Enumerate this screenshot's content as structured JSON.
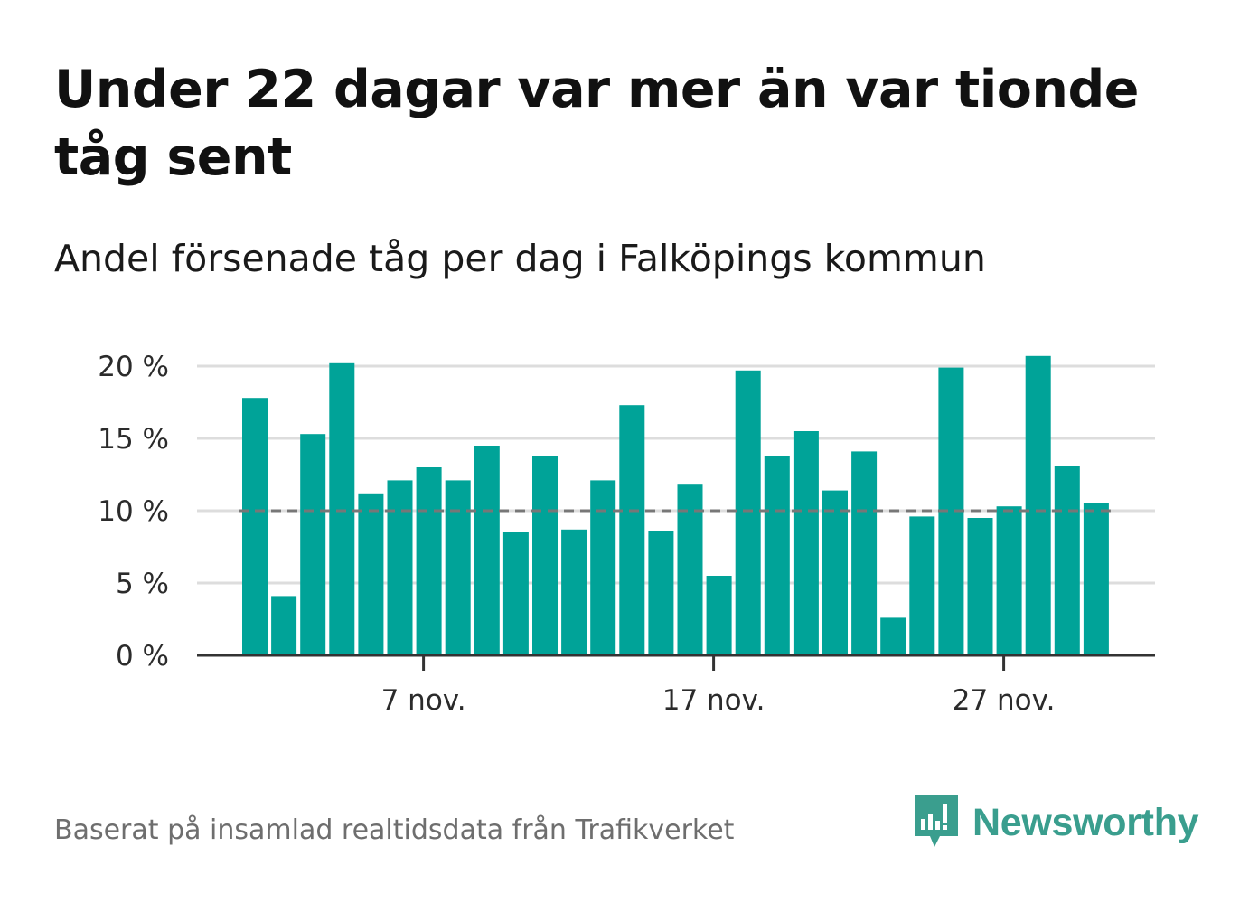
{
  "title": "Under 22 dagar var mer än var tionde tåg sent",
  "subtitle": "Andel försenade tåg per dag i Falköpings kommun",
  "source": "Baserat på insamlad realtidsdata från Trafikverket",
  "brand": {
    "name": "Newsworthy",
    "icon": "newsworthy-chart-bubble-icon",
    "color": "#3a9e8e"
  },
  "colors": {
    "bar": "#00a398",
    "reference_line": "#777777",
    "grid": "#dddddd",
    "axis": "#333333"
  },
  "chart_data": {
    "type": "bar",
    "x": [
      "1 nov.",
      "2 nov.",
      "3 nov.",
      "4 nov.",
      "5 nov.",
      "6 nov.",
      "7 nov.",
      "8 nov.",
      "9 nov.",
      "10 nov.",
      "11 nov.",
      "12 nov.",
      "13 nov.",
      "14 nov.",
      "15 nov.",
      "16 nov.",
      "17 nov.",
      "18 nov.",
      "19 nov.",
      "20 nov.",
      "21 nov.",
      "22 nov.",
      "23 nov.",
      "24 nov.",
      "25 nov.",
      "26 nov.",
      "27 nov.",
      "28 nov.",
      "29 nov.",
      "30 nov."
    ],
    "values": [
      17.8,
      4.1,
      15.3,
      20.2,
      11.2,
      12.1,
      13.0,
      12.1,
      14.5,
      8.5,
      13.8,
      8.7,
      12.1,
      17.3,
      8.6,
      11.8,
      5.5,
      19.7,
      13.8,
      15.5,
      11.4,
      14.1,
      2.6,
      9.6,
      19.9,
      9.5,
      10.3,
      20.7,
      13.1,
      10.5
    ],
    "xticks": [
      "7 nov.",
      "17 nov.",
      "27 nov."
    ],
    "yticks": [
      "0 %",
      "5 %",
      "10 %",
      "15 %",
      "20 %"
    ],
    "ylim": [
      0,
      22
    ],
    "reference_line": 10,
    "grid": true
  }
}
